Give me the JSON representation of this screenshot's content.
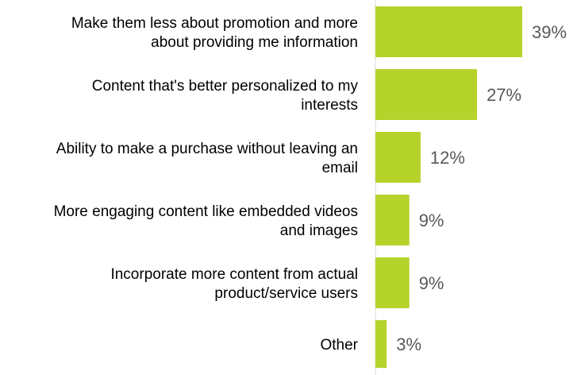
{
  "chart_data": {
    "type": "bar",
    "orientation": "horizontal",
    "categories": [
      [
        "Make them less about promotion and more",
        "about providing me information"
      ],
      [
        "Content that's better personalized to my",
        "interests"
      ],
      [
        "Ability to make a purchase without leaving an",
        "email"
      ],
      [
        "More engaging content like embedded videos",
        "and images"
      ],
      [
        "Incorporate more content from actual",
        "product/service users"
      ],
      [
        "Other"
      ]
    ],
    "values": [
      39,
      27,
      12,
      9,
      9,
      3
    ],
    "value_labels": [
      "39%",
      "27%",
      "12%",
      "9%",
      "9%",
      "3%"
    ],
    "unit": "%",
    "xlim": [
      0,
      39
    ],
    "bar_color": "#b5d32a",
    "value_label_color": "#595959",
    "grid": false,
    "legend": "none"
  }
}
